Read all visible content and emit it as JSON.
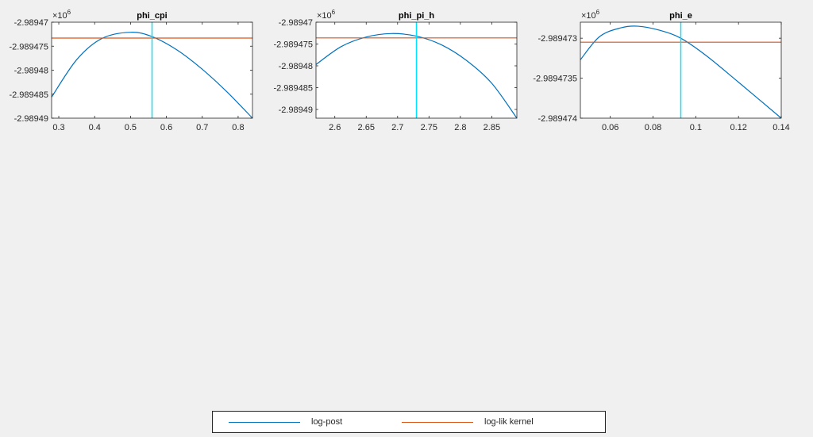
{
  "colors": {
    "log_post": "#0072BD",
    "log_lik_kernel": "#D95319",
    "mode_line": "#00E5FF",
    "axis": "#262626",
    "background": "#f0f0f0"
  },
  "chart_data": [
    {
      "type": "line",
      "title": "phi_cpi",
      "xlim": [
        0.28,
        0.84
      ],
      "ylim": [
        -2989490,
        -2989470
      ],
      "exponent_label": "×10",
      "exponent_power": "6",
      "xticks": [
        0.3,
        0.4,
        0.5,
        0.6,
        0.7,
        0.8
      ],
      "xtick_labels": [
        "0.3",
        "0.4",
        "0.5",
        "0.6",
        "0.7",
        "0.8"
      ],
      "yticks": [
        -2989490,
        -2989485,
        -2989480,
        -2989475,
        -2989470
      ],
      "ytick_labels": [
        "-2.98949",
        "-2.989485",
        "-2.98948",
        "-2.989475",
        "-2.98947"
      ],
      "mode_x": 0.56,
      "series": [
        {
          "name": "log-post",
          "x": [
            0.28,
            0.35,
            0.42,
            0.5,
            0.56,
            0.63,
            0.7,
            0.77,
            0.84
          ],
          "y": [
            -2989485.6,
            -2989477.8,
            -2989473.4,
            -2989472.1,
            -2989473.0,
            -2989475.8,
            -2989479.8,
            -2989484.6,
            -2989490.0
          ]
        },
        {
          "name": "log-lik kernel",
          "x": [
            0.28,
            0.84
          ],
          "y": [
            -2989473.3,
            -2989473.3
          ]
        }
      ]
    },
    {
      "type": "line",
      "title": "phi_pi_h",
      "xlim": [
        2.57,
        2.89
      ],
      "ylim": [
        -2989492,
        -2989470
      ],
      "exponent_label": "×10",
      "exponent_power": "6",
      "xticks": [
        2.6,
        2.65,
        2.7,
        2.75,
        2.8,
        2.85
      ],
      "xtick_labels": [
        "2.6",
        "2.65",
        "2.7",
        "2.75",
        "2.8",
        "2.85"
      ],
      "yticks": [
        -2989490,
        -2989485,
        -2989480,
        -2989475,
        -2989470
      ],
      "ytick_labels": [
        "-2.98949",
        "-2.989485",
        "-2.98948",
        "-2.989475",
        "-2.98947"
      ],
      "mode_x": 2.73,
      "series": [
        {
          "name": "log-post",
          "x": [
            2.57,
            2.61,
            2.65,
            2.69,
            2.73,
            2.77,
            2.81,
            2.85,
            2.89
          ],
          "y": [
            -2989479.7,
            -2989475.6,
            -2989473.4,
            -2989472.6,
            -2989473.2,
            -2989475.2,
            -2989478.8,
            -2989484.0,
            -2989492.0
          ]
        },
        {
          "name": "log-lik kernel",
          "x": [
            2.57,
            2.89
          ],
          "y": [
            -2989473.6,
            -2989473.6
          ]
        }
      ]
    },
    {
      "type": "line",
      "title": "phi_e",
      "xlim": [
        0.046,
        0.14
      ],
      "ylim": [
        -2989474,
        -2989472.8
      ],
      "exponent_label": "×10",
      "exponent_power": "6",
      "xticks": [
        0.06,
        0.08,
        0.1,
        0.12,
        0.14
      ],
      "xtick_labels": [
        "0.06",
        "0.08",
        "0.1",
        "0.12",
        "0.14"
      ],
      "yticks": [
        -2989474,
        -2989473.5,
        -2989473
      ],
      "ytick_labels": [
        "-2.989474",
        "-2.9894735",
        "-2.989473"
      ],
      "mode_x": 0.093,
      "series": [
        {
          "name": "log-post",
          "x": [
            0.046,
            0.055,
            0.065,
            0.073,
            0.083,
            0.093,
            0.105,
            0.12,
            0.14
          ],
          "y": [
            -2989473.27,
            -2989472.98,
            -2989472.87,
            -2989472.85,
            -2989472.9,
            -2989473.0,
            -2989473.22,
            -2989473.55,
            -2989474.0
          ]
        },
        {
          "name": "log-lik kernel",
          "x": [
            0.046,
            0.14
          ],
          "y": [
            -2989473.05,
            -2989473.05
          ]
        }
      ]
    }
  ],
  "legend": {
    "items": [
      {
        "label": "log-post"
      },
      {
        "label": "log-lik kernel"
      }
    ]
  }
}
